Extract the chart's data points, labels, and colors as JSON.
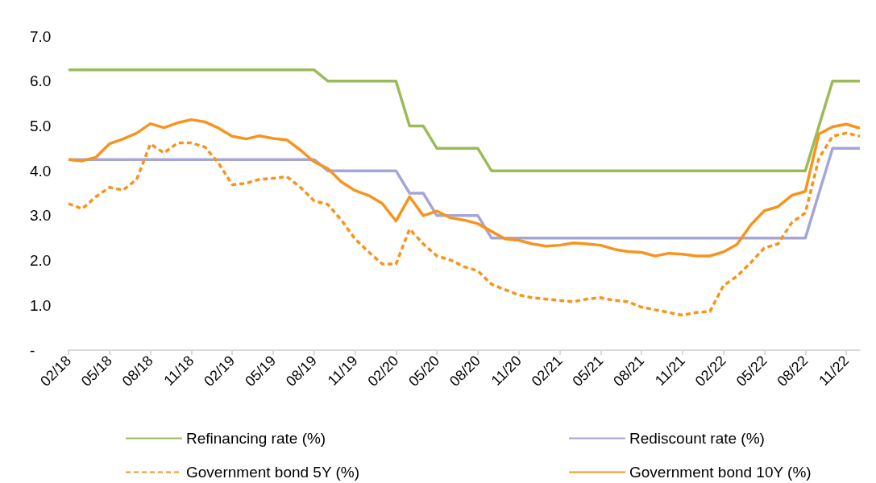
{
  "chart_data": {
    "type": "line",
    "categories": [
      "02/18",
      null,
      null,
      "05/18",
      null,
      null,
      "08/18",
      null,
      null,
      "11/18",
      null,
      null,
      "02/19",
      null,
      null,
      "05/19",
      null,
      null,
      "08/19",
      null,
      null,
      "11/19",
      null,
      null,
      "02/20",
      null,
      null,
      "05/20",
      null,
      null,
      "08/20",
      null,
      null,
      "11/20",
      null,
      null,
      "02/21",
      null,
      null,
      "05/21",
      null,
      null,
      "08/21",
      null,
      null,
      "11/21",
      null,
      null,
      "02/22",
      null,
      null,
      "05/22",
      null,
      null,
      "08/22",
      null,
      null,
      "11/22",
      null
    ],
    "ylim": [
      0,
      7
    ],
    "yticks": [
      {
        "value": 0,
        "label": "-"
      },
      {
        "value": 1,
        "label": "1.0"
      },
      {
        "value": 2,
        "label": "2.0"
      },
      {
        "value": 3,
        "label": "3.0"
      },
      {
        "value": 4,
        "label": "4.0"
      },
      {
        "value": 5,
        "label": "5.0"
      },
      {
        "value": 6,
        "label": "6.0"
      },
      {
        "value": 7,
        "label": "7.0"
      }
    ],
    "grid": false,
    "legend": "bottom",
    "marker": "none",
    "series": [
      {
        "name": "Refinancing rate (%)",
        "color": "#9bbb59",
        "line_style": "solid",
        "values": [
          6.25,
          6.25,
          6.25,
          6.25,
          6.25,
          6.25,
          6.25,
          6.25,
          6.25,
          6.25,
          6.25,
          6.25,
          6.25,
          6.25,
          6.25,
          6.25,
          6.25,
          6.25,
          6.25,
          6.0,
          6.0,
          6.0,
          6.0,
          6.0,
          6.0,
          5.0,
          5.0,
          4.5,
          4.5,
          4.5,
          4.5,
          4.0,
          4.0,
          4.0,
          4.0,
          4.0,
          4.0,
          4.0,
          4.0,
          4.0,
          4.0,
          4.0,
          4.0,
          4.0,
          4.0,
          4.0,
          4.0,
          4.0,
          4.0,
          4.0,
          4.0,
          4.0,
          4.0,
          4.0,
          4.0,
          5.0,
          6.0,
          6.0,
          6.0
        ]
      },
      {
        "name": "Rediscount rate (%)",
        "color": "#a5a5d8",
        "line_style": "solid",
        "values": [
          4.25,
          4.25,
          4.25,
          4.25,
          4.25,
          4.25,
          4.25,
          4.25,
          4.25,
          4.25,
          4.25,
          4.25,
          4.25,
          4.25,
          4.25,
          4.25,
          4.25,
          4.25,
          4.25,
          4.0,
          4.0,
          4.0,
          4.0,
          4.0,
          4.0,
          3.5,
          3.5,
          3.0,
          3.0,
          3.0,
          3.0,
          2.5,
          2.5,
          2.5,
          2.5,
          2.5,
          2.5,
          2.5,
          2.5,
          2.5,
          2.5,
          2.5,
          2.5,
          2.5,
          2.5,
          2.5,
          2.5,
          2.5,
          2.5,
          2.5,
          2.5,
          2.5,
          2.5,
          2.5,
          2.5,
          3.5,
          4.5,
          4.5,
          4.5
        ]
      },
      {
        "name": "Government bond 5Y (%)",
        "color": "#f7941d",
        "line_style": "dashed",
        "values": [
          3.27,
          3.15,
          3.42,
          3.63,
          3.57,
          3.81,
          4.6,
          4.4,
          4.62,
          4.62,
          4.53,
          4.17,
          3.69,
          3.72,
          3.81,
          3.83,
          3.87,
          3.63,
          3.33,
          3.25,
          2.9,
          2.48,
          2.19,
          1.92,
          1.92,
          2.7,
          2.37,
          2.1,
          2.01,
          1.86,
          1.77,
          1.47,
          1.35,
          1.23,
          1.17,
          1.14,
          1.11,
          1.08,
          1.14,
          1.17,
          1.11,
          1.08,
          0.96,
          0.9,
          0.84,
          0.78,
          0.84,
          0.86,
          1.44,
          1.65,
          1.95,
          2.28,
          2.37,
          2.84,
          3.06,
          4.28,
          4.77,
          4.84,
          4.77
        ]
      },
      {
        "name": "Government bond 10Y (%)",
        "color": "#f7941d",
        "line_style": "solid",
        "values": [
          4.25,
          4.22,
          4.3,
          4.6,
          4.71,
          4.84,
          5.05,
          4.96,
          5.07,
          5.14,
          5.09,
          4.95,
          4.77,
          4.71,
          4.78,
          4.72,
          4.69,
          4.46,
          4.2,
          4.05,
          3.75,
          3.56,
          3.45,
          3.27,
          2.88,
          3.42,
          3.0,
          3.1,
          2.95,
          2.9,
          2.82,
          2.65,
          2.48,
          2.45,
          2.37,
          2.32,
          2.34,
          2.39,
          2.37,
          2.34,
          2.25,
          2.2,
          2.18,
          2.1,
          2.16,
          2.14,
          2.1,
          2.1,
          2.19,
          2.36,
          2.79,
          3.11,
          3.2,
          3.45,
          3.54,
          4.82,
          4.98,
          5.04,
          4.95
        ]
      }
    ]
  }
}
